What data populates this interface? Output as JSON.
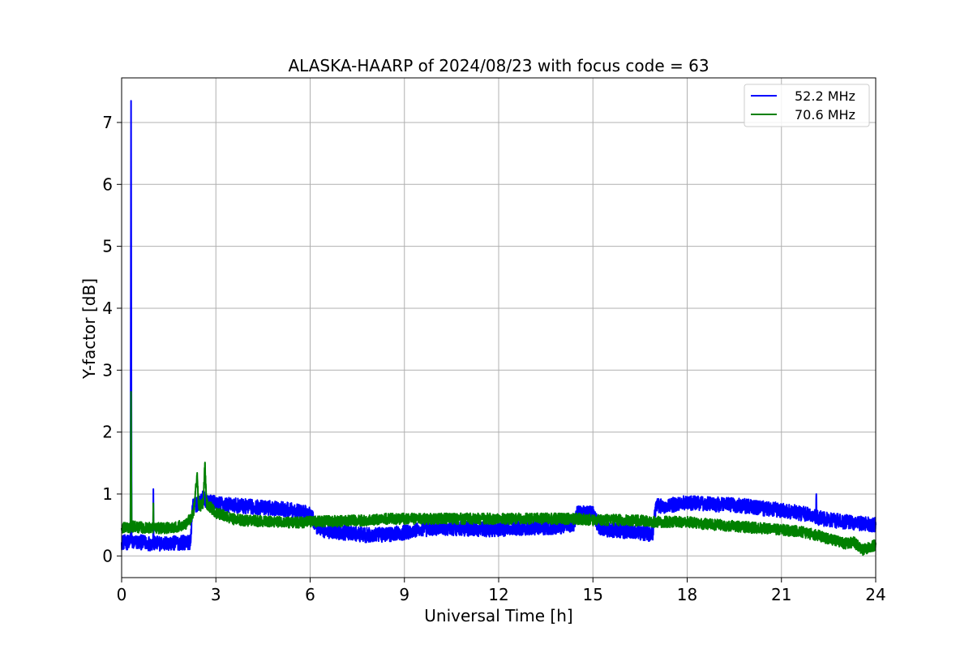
{
  "chart_data": {
    "type": "line",
    "title": "ALASKA-HAARP of 2024/08/23 with focus code = 63",
    "xlabel": "Universal Time [h]",
    "ylabel": "Y-factor [dB]",
    "xlim": [
      0,
      24
    ],
    "ylim": [
      -0.35,
      7.72
    ],
    "xticks": [
      0,
      3,
      6,
      9,
      12,
      15,
      18,
      21,
      24
    ],
    "yticks": [
      0,
      1,
      2,
      3,
      4,
      5,
      6,
      7
    ],
    "grid": true,
    "legend_position": "top-right",
    "series": [
      {
        "name": "52.2 MHz",
        "color": "#0000ff",
        "noise": 0.12,
        "x": [
          0,
          0.28,
          0.29,
          0.3,
          0.31,
          0.32,
          0.6,
          1.0,
          1.01,
          1.02,
          1.5,
          2.0,
          2.2,
          2.25,
          2.5,
          2.6,
          2.7,
          3.0,
          3.5,
          4.0,
          4.5,
          5.0,
          5.5,
          6.0,
          6.2,
          6.5,
          7.0,
          7.5,
          8.0,
          8.5,
          9.0,
          9.5,
          10.0,
          10.5,
          11.0,
          11.5,
          12.0,
          12.5,
          13.0,
          13.5,
          14.0,
          14.4,
          14.5,
          15.0,
          15.2,
          15.5,
          16.0,
          16.5,
          16.9,
          17.0,
          17.5,
          18.0,
          18.5,
          19.0,
          19.5,
          20.0,
          20.5,
          21.0,
          21.5,
          22.0,
          22.1,
          22.11,
          22.12,
          22.3,
          22.5,
          23.0,
          23.5,
          24.0
        ],
        "y": [
          0.22,
          0.22,
          3.5,
          7.35,
          3.0,
          0.22,
          0.22,
          0.2,
          1.08,
          0.2,
          0.2,
          0.22,
          0.22,
          0.8,
          0.85,
          0.95,
          0.88,
          0.85,
          0.82,
          0.8,
          0.78,
          0.77,
          0.73,
          0.68,
          0.48,
          0.4,
          0.38,
          0.35,
          0.33,
          0.35,
          0.38,
          0.42,
          0.45,
          0.45,
          0.44,
          0.43,
          0.43,
          0.45,
          0.46,
          0.46,
          0.48,
          0.52,
          0.7,
          0.7,
          0.45,
          0.42,
          0.4,
          0.38,
          0.35,
          0.8,
          0.82,
          0.86,
          0.85,
          0.83,
          0.82,
          0.8,
          0.76,
          0.74,
          0.7,
          0.65,
          0.62,
          1.0,
          0.62,
          0.6,
          0.58,
          0.55,
          0.52,
          0.5
        ]
      },
      {
        "name": "70.6 MHz",
        "color": "#008000",
        "noise": 0.09,
        "x": [
          0,
          0.28,
          0.29,
          0.3,
          0.31,
          0.32,
          0.6,
          1.0,
          1.01,
          1.02,
          1.5,
          2.0,
          2.2,
          2.3,
          2.4,
          2.45,
          2.5,
          2.6,
          2.65,
          2.7,
          3.0,
          3.5,
          4.0,
          4.5,
          5.0,
          5.5,
          6.0,
          6.5,
          7.0,
          7.5,
          8.0,
          8.5,
          9.0,
          9.5,
          10.0,
          10.5,
          11.0,
          11.5,
          12.0,
          12.5,
          13.0,
          13.5,
          14.0,
          14.5,
          15.0,
          15.5,
          16.0,
          16.5,
          17.0,
          17.5,
          18.0,
          18.5,
          19.0,
          19.5,
          20.0,
          20.5,
          21.0,
          21.5,
          22.0,
          22.5,
          23.0,
          23.3,
          23.6,
          24.0
        ],
        "y": [
          0.45,
          0.45,
          1.5,
          2.65,
          1.2,
          0.48,
          0.46,
          0.45,
          0.85,
          0.45,
          0.45,
          0.5,
          0.6,
          0.75,
          1.3,
          0.85,
          0.8,
          0.85,
          1.5,
          0.85,
          0.7,
          0.6,
          0.57,
          0.56,
          0.55,
          0.54,
          0.55,
          0.56,
          0.56,
          0.57,
          0.58,
          0.6,
          0.6,
          0.6,
          0.6,
          0.6,
          0.6,
          0.6,
          0.6,
          0.6,
          0.6,
          0.6,
          0.6,
          0.6,
          0.58,
          0.58,
          0.58,
          0.57,
          0.55,
          0.55,
          0.55,
          0.52,
          0.5,
          0.48,
          0.46,
          0.44,
          0.42,
          0.4,
          0.35,
          0.28,
          0.2,
          0.22,
          0.1,
          0.18
        ]
      }
    ]
  }
}
